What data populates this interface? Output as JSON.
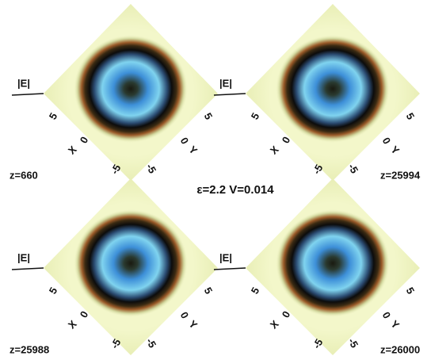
{
  "caption": "ε=2.2 V=0.014",
  "panels": [
    {
      "z_label": "z=660",
      "e_label": "|E|",
      "x_axis": {
        "label": "X",
        "ticks": [
          "5",
          "0",
          "-5"
        ]
      },
      "y_axis": {
        "label": "Y",
        "ticks": [
          "5",
          "0",
          "-5"
        ]
      }
    },
    {
      "z_label": "z=25994",
      "e_label": "|E|",
      "x_axis": {
        "label": "X",
        "ticks": [
          "5",
          "0",
          "-5"
        ]
      },
      "y_axis": {
        "label": "Y",
        "ticks": [
          "5",
          "0",
          "-5"
        ]
      }
    },
    {
      "z_label": "z=25988",
      "e_label": "|E|",
      "x_axis": {
        "label": "X",
        "ticks": [
          "5",
          "0",
          "-5"
        ]
      },
      "y_axis": {
        "label": "Y",
        "ticks": [
          "5",
          "0",
          "-5"
        ]
      }
    },
    {
      "z_label": "z=26000",
      "e_label": "|E|",
      "x_axis": {
        "label": "X",
        "ticks": [
          "5",
          "0",
          "-5"
        ]
      },
      "y_axis": {
        "label": "Y",
        "ticks": [
          "5",
          "0",
          "-5"
        ]
      }
    }
  ]
}
